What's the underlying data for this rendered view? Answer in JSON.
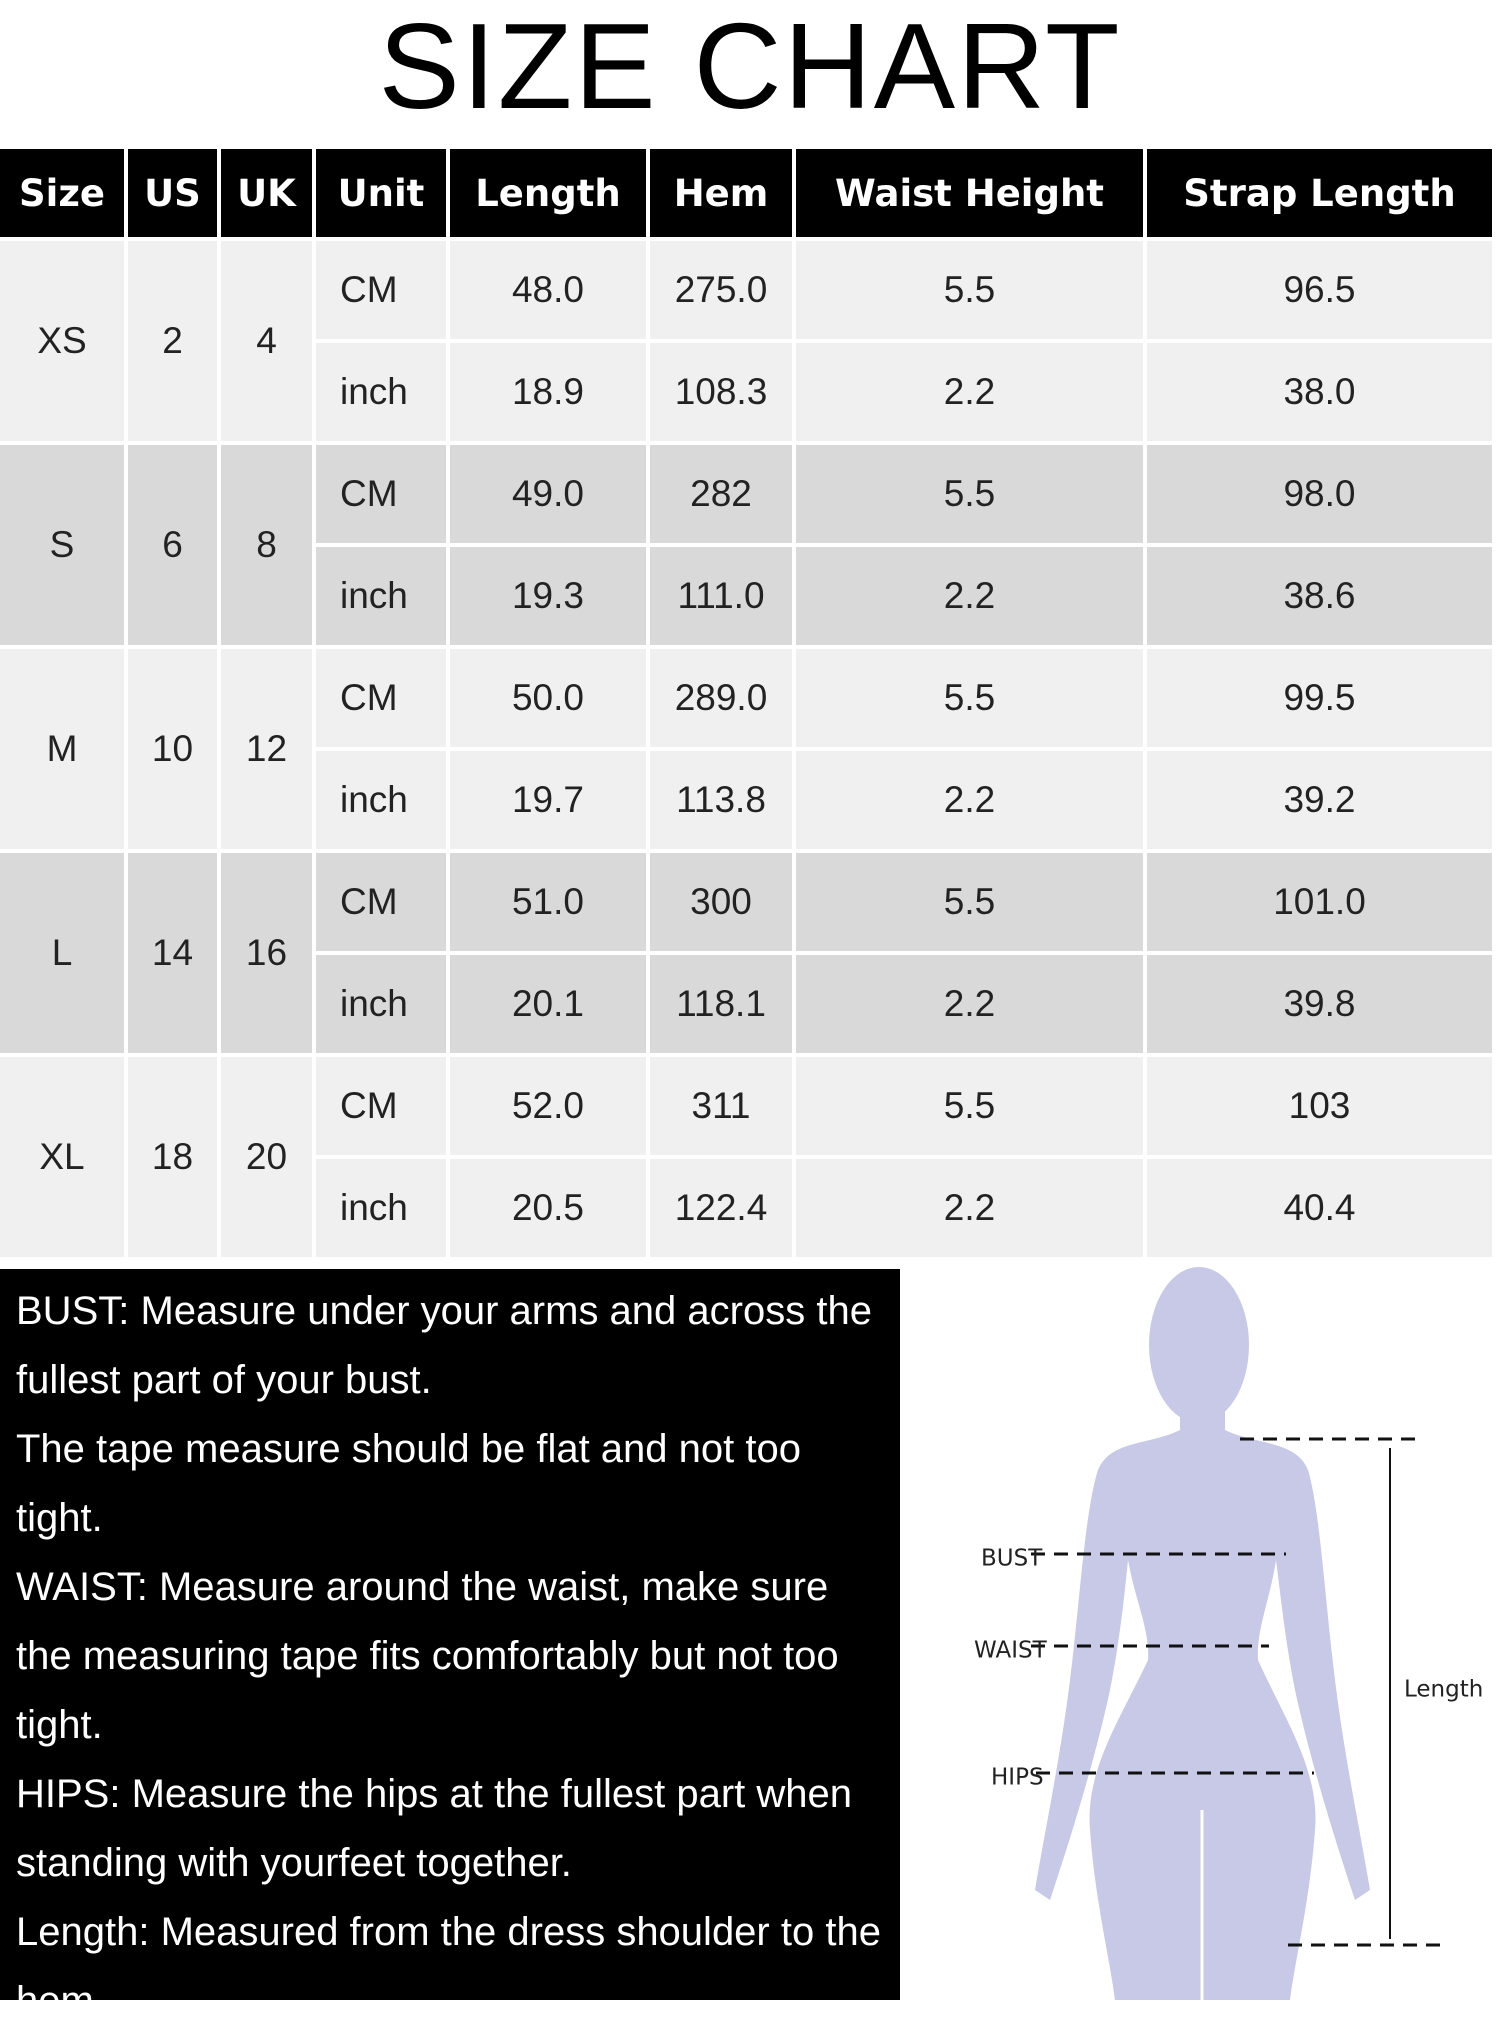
{
  "title": "SIZE CHART",
  "table": {
    "headers": [
      "Size",
      "US",
      "UK",
      "Unit",
      "Length",
      "Hem",
      "Waist Height",
      "Strap Length"
    ],
    "rows": [
      {
        "size": "XS",
        "us": "2",
        "uk": "4",
        "lines": [
          [
            "CM",
            "48.0",
            "275.0",
            "5.5",
            "96.5"
          ],
          [
            "inch",
            "18.9",
            "108.3",
            "2.2",
            "38.0"
          ]
        ]
      },
      {
        "size": "S",
        "us": "6",
        "uk": "8",
        "lines": [
          [
            "CM",
            "49.0",
            "282",
            "5.5",
            "98.0"
          ],
          [
            "inch",
            "19.3",
            "111.0",
            "2.2",
            "38.6"
          ]
        ]
      },
      {
        "size": "M",
        "us": "10",
        "uk": "12",
        "lines": [
          [
            "CM",
            "50.0",
            "289.0",
            "5.5",
            "99.5"
          ],
          [
            "inch",
            "19.7",
            "113.8",
            "2.2",
            "39.2"
          ]
        ]
      },
      {
        "size": "L",
        "us": "14",
        "uk": "16",
        "lines": [
          [
            "CM",
            "51.0",
            "300",
            "5.5",
            "101.0"
          ],
          [
            "inch",
            "20.1",
            "118.1",
            "2.2",
            "39.8"
          ]
        ]
      },
      {
        "size": "XL",
        "us": "18",
        "uk": "20",
        "lines": [
          [
            "CM",
            "52.0",
            "311",
            "5.5",
            "103"
          ],
          [
            "inch",
            "20.5",
            "122.4",
            "2.2",
            "40.4"
          ]
        ]
      }
    ]
  },
  "notes": [
    "BUST: Measure under your arms and across the fullest part of your bust.",
    "The tape measure should be flat and not too tight.",
    "WAIST: Measure around the waist, make sure the measuring tape fits comfortably but not too tight.",
    "HIPS: Measure the hips at the fullest part when standing with yourfeet together.",
    "Length: Measured from the dress shoulder to the hem."
  ],
  "diagram": {
    "bust": "BUST",
    "waist": "WAIST",
    "hips": "HIPS",
    "length": "Length"
  }
}
